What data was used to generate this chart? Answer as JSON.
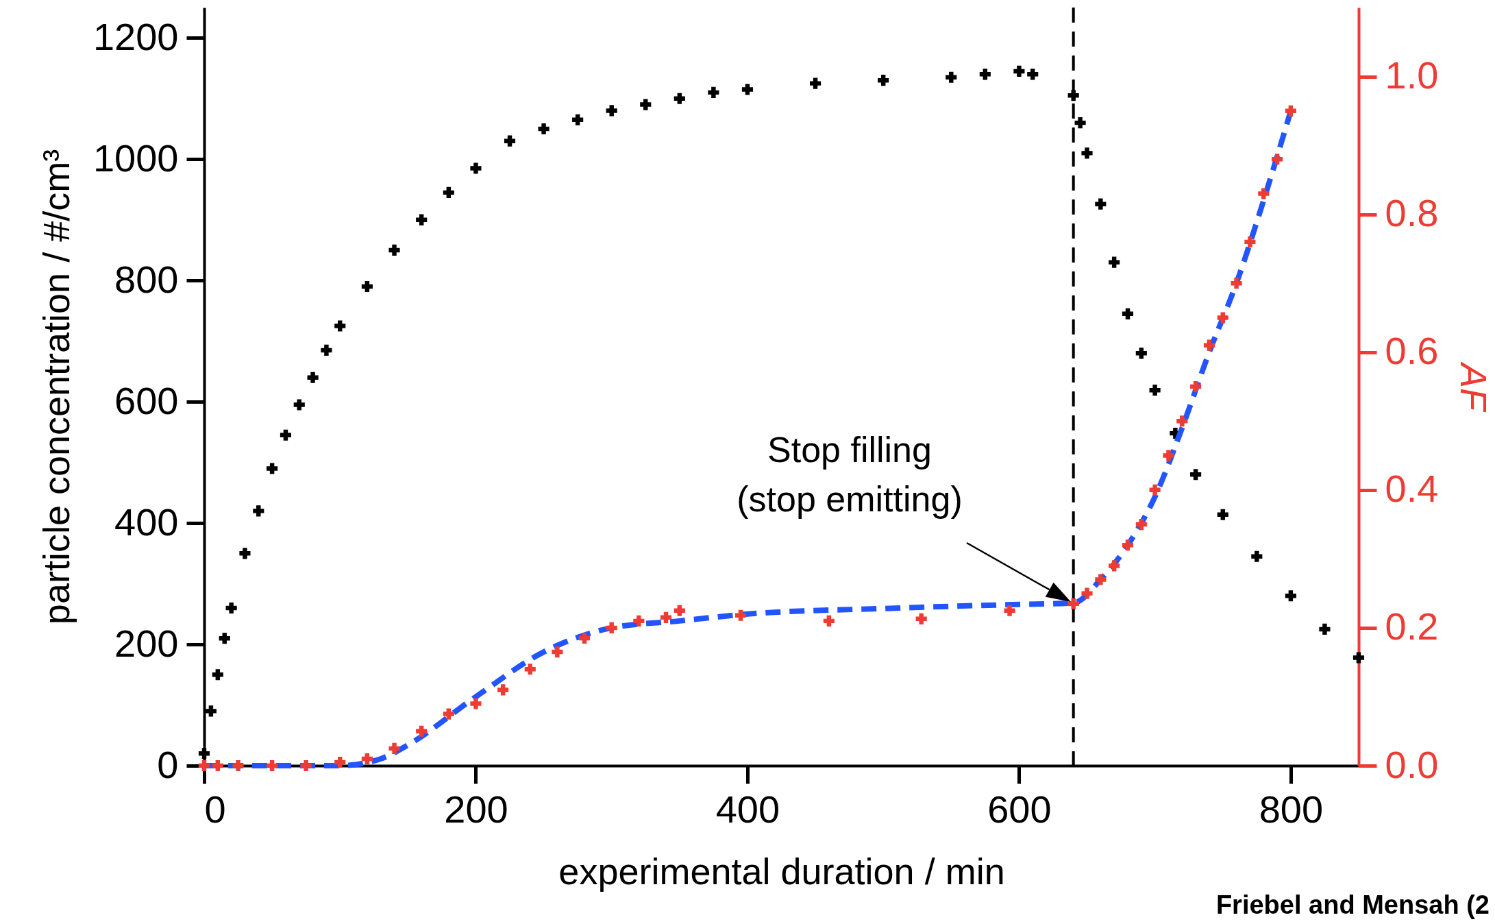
{
  "chart_data": {
    "type": "scatter",
    "xlabel": "experimental duration / min",
    "ylabel": "particle concentration / #/cm³",
    "y2label": "AF",
    "xlim": [
      0,
      850
    ],
    "xticks": [
      0,
      200,
      400,
      600,
      800
    ],
    "ylim": [
      0,
      1250
    ],
    "yticks": [
      0,
      200,
      400,
      600,
      800,
      1000,
      1200
    ],
    "y2lim": [
      0,
      1.1
    ],
    "y2ticks": [
      {
        "value": 0,
        "label": "0.0"
      },
      0.2,
      0.4,
      0.6,
      0.8,
      {
        "value": 1,
        "label": "1.0"
      }
    ],
    "grid": false,
    "series": [
      {
        "marker": "cross",
        "color": "#000000",
        "x": [
          0,
          5,
          10,
          15,
          20,
          30,
          40,
          50,
          60,
          70,
          80,
          90,
          100,
          120,
          140,
          160,
          180,
          200,
          225,
          250,
          275,
          300,
          325,
          350,
          375,
          400,
          450,
          500,
          550,
          575,
          600,
          610,
          640,
          645,
          650,
          660,
          670,
          680,
          690,
          700,
          715,
          730,
          750,
          775,
          800,
          825,
          850
        ],
        "values": [
          20,
          90,
          150,
          210,
          260,
          350,
          420,
          490,
          545,
          595,
          640,
          685,
          725,
          790,
          850,
          900,
          945,
          985,
          1030,
          1050,
          1065,
          1080,
          1090,
          1100,
          1110,
          1115,
          1125,
          1130,
          1135,
          1140,
          1145,
          1140,
          1105,
          1060,
          1010,
          926,
          830,
          745,
          680,
          619,
          548,
          480,
          414,
          345,
          280,
          225,
          178
        ]
      },
      {
        "marker": "cross",
        "color": "#ee3b33",
        "axis": "y2",
        "x": [
          0,
          10,
          25,
          50,
          75,
          100,
          120,
          140,
          160,
          180,
          200,
          220,
          240,
          260,
          280,
          300,
          320,
          340,
          350,
          395,
          460,
          528,
          593,
          640,
          650,
          660,
          670,
          680,
          690,
          700,
          710,
          720,
          730,
          740,
          750,
          760,
          770,
          780,
          790,
          800
        ],
        "values": [
          0,
          0,
          0,
          0,
          0,
          0.005,
          0.01,
          0.025,
          0.05,
          0.075,
          0.09,
          0.11,
          0.14,
          0.165,
          0.185,
          0.2,
          0.21,
          0.215,
          0.225,
          0.218,
          0.21,
          0.213,
          0.225,
          0.235,
          0.25,
          0.27,
          0.29,
          0.32,
          0.35,
          0.4,
          0.45,
          0.5,
          0.55,
          0.61,
          0.65,
          0.7,
          0.76,
          0.83,
          0.88,
          0.95
        ]
      },
      {
        "type": "line",
        "line_style": "dashed",
        "color": "#2255ff",
        "axis": "y2",
        "x": [
          0,
          100,
          130,
          150,
          200,
          250,
          300,
          350,
          400,
          500,
          600,
          640,
          660,
          680,
          700,
          720,
          740,
          760,
          780,
          800
        ],
        "values": [
          0,
          0,
          0.01,
          0.03,
          0.1,
          0.165,
          0.2,
          0.21,
          0.22,
          0.228,
          0.234,
          0.236,
          0.27,
          0.32,
          0.39,
          0.49,
          0.6,
          0.7,
          0.82,
          0.95
        ]
      }
    ],
    "ref_lines": [
      {
        "axis": "x",
        "value": 640,
        "color": "#000000",
        "line_style": "dashed"
      }
    ],
    "annotations": [
      "Stop filling\n(stop emitting)",
      "Friebel and Mensah (2"
    ]
  }
}
